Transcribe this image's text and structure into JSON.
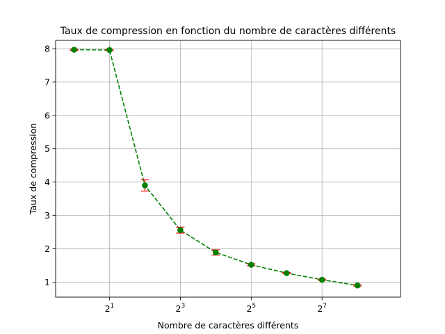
{
  "chart_data": {
    "type": "line",
    "title": "Taux de compression en fonction du nombre de caractères différents",
    "xlabel": "Nombre de caractères différents",
    "ylabel": "Taux de compression",
    "x_scale": "log2",
    "xlim": [
      0.697,
      594
    ],
    "ylim": [
      0.55,
      8.25
    ],
    "grid": true,
    "x_ticks": [
      {
        "value": 2,
        "base": "2",
        "exp": "1"
      },
      {
        "value": 8,
        "base": "2",
        "exp": "3"
      },
      {
        "value": 32,
        "base": "2",
        "exp": "5"
      },
      {
        "value": 128,
        "base": "2",
        "exp": "7"
      }
    ],
    "y_ticks": [
      {
        "value": 1,
        "label": "1"
      },
      {
        "value": 2,
        "label": "2"
      },
      {
        "value": 3,
        "label": "3"
      },
      {
        "value": 4,
        "label": "4"
      },
      {
        "value": 5,
        "label": "5"
      },
      {
        "value": 6,
        "label": "6"
      },
      {
        "value": 7,
        "label": "7"
      },
      {
        "value": 8,
        "label": "8"
      }
    ],
    "series": [
      {
        "x": [
          1,
          2,
          4,
          8,
          16,
          32,
          64,
          128,
          256
        ],
        "y": [
          7.97,
          7.96,
          3.9,
          2.56,
          1.89,
          1.52,
          1.27,
          1.07,
          0.9
        ],
        "yerr": [
          0.02,
          0.02,
          0.17,
          0.09,
          0.08,
          0.03,
          0.02,
          0.02,
          0.02
        ],
        "line_style": "dashed",
        "color": "#008000",
        "marker": "circle",
        "error_color": "#ff0000"
      }
    ]
  }
}
